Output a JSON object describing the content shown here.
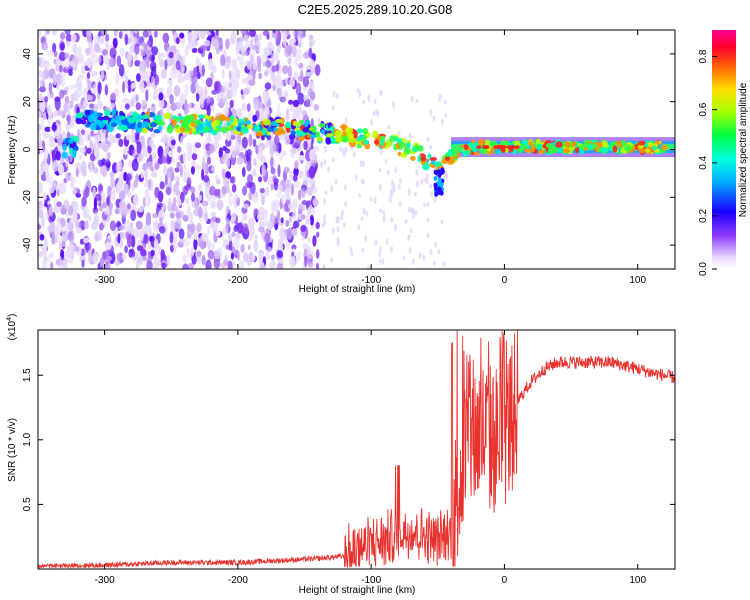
{
  "title": "C2E5.2025.289.10.20.G08",
  "chart_data": [
    {
      "type": "heatmap",
      "xlabel": "Height of straight line (km)",
      "ylabel": "Frequency (Hz)",
      "xlim": [
        -350,
        128
      ],
      "ylim": [
        -50,
        50
      ],
      "xticks": [
        -300,
        -200,
        -100,
        0,
        100
      ],
      "yticks": [
        -40,
        -20,
        0,
        20,
        40
      ],
      "colorbar": {
        "label": "Normalized spectral amplitude",
        "range": [
          0.0,
          0.9
        ],
        "ticks": [
          "0.0",
          "0.2",
          "0.4",
          "0.6",
          "0.8"
        ]
      },
      "ridge": {
        "x": [
          -320,
          -260,
          -200,
          -150,
          -120,
          -90,
          -70,
          -50,
          -40,
          -30,
          -20,
          -10,
          0,
          20,
          60,
          100,
          128
        ],
        "freq": [
          13,
          11,
          10,
          8,
          6,
          3,
          0,
          -8,
          -3,
          0,
          1,
          1,
          1,
          1,
          1,
          1,
          1
        ]
      }
    },
    {
      "type": "line",
      "xlabel": "Height of straight line (km)",
      "ylabel": "SNR (10 * v/v)",
      "multiplier": "(x10^4)",
      "multiplier_base": "(x10",
      "multiplier_exp": "4",
      "xlim": [
        -350,
        128
      ],
      "ylim": [
        0,
        1.85
      ],
      "xticks": [
        -300,
        -200,
        -100,
        0,
        100
      ],
      "yticks": [
        0.5,
        1.0,
        1.5
      ],
      "ytick_labels": [
        "0.5",
        "1.0",
        "1.5"
      ],
      "color": "#e8322e",
      "series": [
        {
          "x": [
            -350,
            -300,
            -250,
            -200,
            -160,
            -140,
            -120,
            -110,
            -100,
            -90,
            -80,
            -70,
            -60,
            -50,
            -40,
            -35,
            -30,
            -25,
            -20,
            -15,
            -10,
            -5,
            0,
            5,
            10,
            20,
            30,
            40,
            60,
            80,
            100,
            110,
            128
          ],
          "values": [
            0.02,
            0.03,
            0.05,
            0.05,
            0.07,
            0.08,
            0.1,
            0.15,
            0.2,
            0.22,
            0.28,
            0.3,
            0.27,
            0.22,
            0.28,
            0.6,
            0.9,
            1.0,
            1.05,
            1.05,
            1.0,
            1.0,
            1.05,
            1.15,
            1.3,
            1.45,
            1.55,
            1.6,
            1.6,
            1.6,
            1.55,
            1.52,
            1.48
          ]
        }
      ]
    }
  ]
}
